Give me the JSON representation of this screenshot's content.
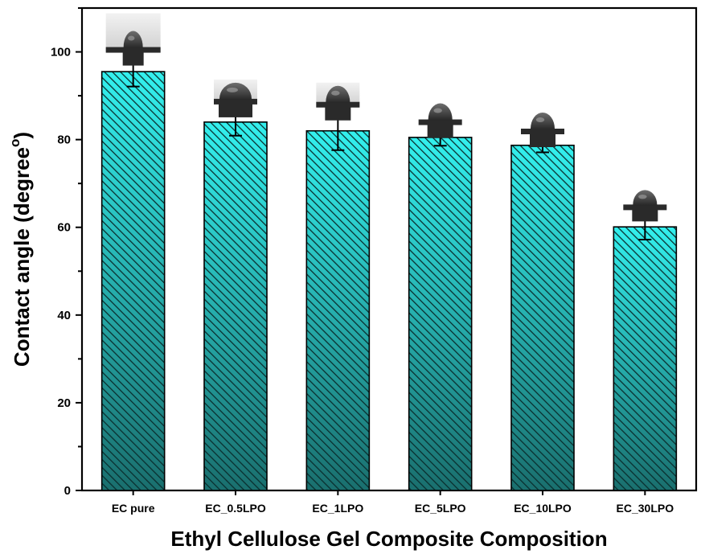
{
  "chart_data": {
    "type": "bar",
    "title": "",
    "xlabel": "Ethyl Cellulose Gel Composite Composition",
    "ylabel_main": "Contact angle (degree",
    "ylabel_sup": "o",
    "ylabel_close": ")",
    "categories": [
      "EC pure",
      "EC_0.5LPO",
      "EC_1LPO",
      "EC_5LPO",
      "EC_10LPO",
      "EC_30LPO"
    ],
    "values": [
      95.5,
      84.0,
      82.0,
      80.5,
      78.7,
      60.1
    ],
    "errors": [
      3.4,
      3.1,
      4.4,
      1.9,
      1.6,
      2.9
    ],
    "ylim": [
      0,
      110
    ],
    "yticks": [
      "0",
      "20",
      "40",
      "60",
      "80",
      "100"
    ],
    "ytick_values": [
      0,
      20,
      40,
      60,
      80,
      100
    ],
    "grid": false,
    "legend": "none",
    "bar_fill_top": "#33f0ee",
    "bar_fill_bottom": "#1a6f6e",
    "hatch_color": "#0a2f2f",
    "droplet_images": [
      "droplet-photo",
      "droplet-photo",
      "droplet-photo",
      "droplet-photo",
      "droplet-photo",
      "droplet-photo"
    ]
  }
}
